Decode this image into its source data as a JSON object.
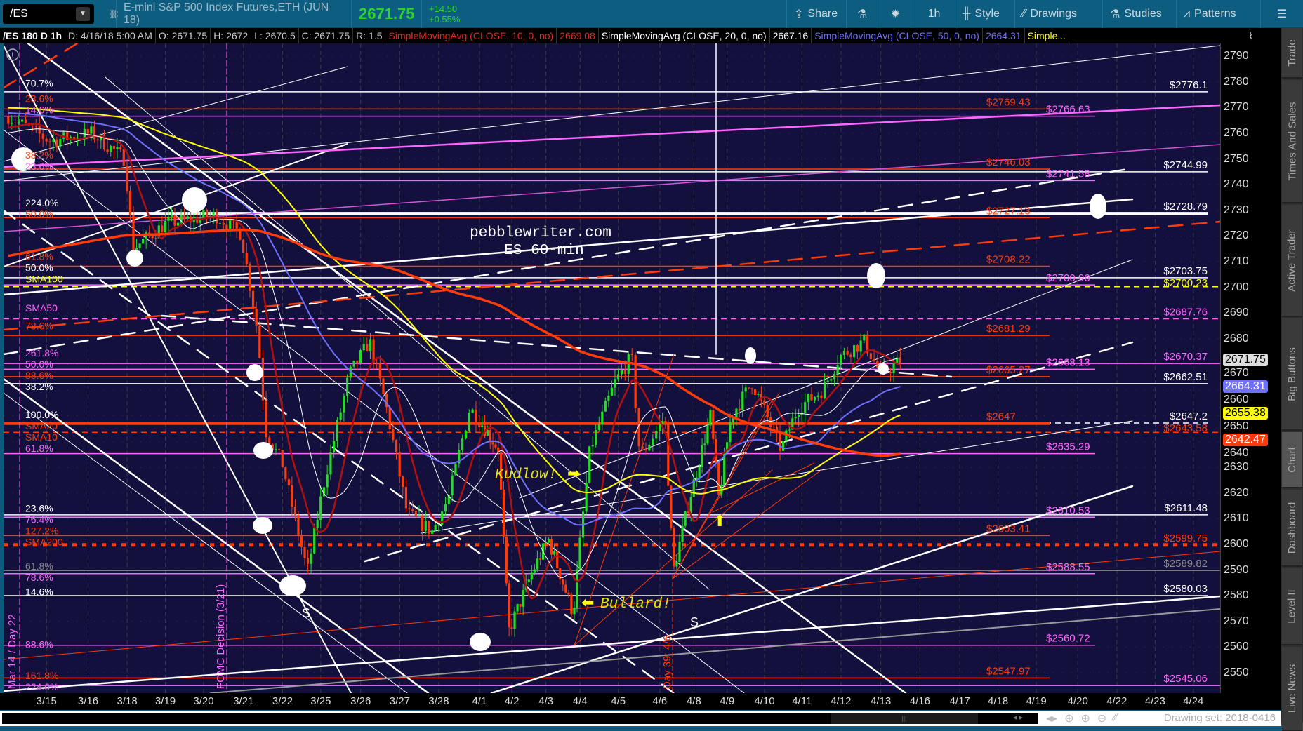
{
  "toolbar": {
    "symbol": "/ES",
    "description": "E-mini S&P 500 Index Futures,ETH (JUN 18)",
    "last": "2671.75",
    "change": "+14.50",
    "change_pct": "+0.55%",
    "buttons": [
      {
        "icon": "share-icon",
        "label": "Share"
      },
      {
        "icon": "flask-icon",
        "label": ""
      },
      {
        "icon": "gear-icon",
        "label": ""
      },
      {
        "icon": "",
        "label": "1h"
      },
      {
        "icon": "candle-icon",
        "label": "Style"
      },
      {
        "icon": "drawings-icon",
        "label": "Drawings"
      },
      {
        "icon": "flask-icon",
        "label": "Studies"
      },
      {
        "icon": "patterns-icon",
        "label": "Patterns"
      },
      {
        "icon": "menu-icon",
        "label": ""
      }
    ]
  },
  "infobar": {
    "title": "/ES 180 D 1h",
    "date": "D: 4/16/18 5:00 AM",
    "open": "O: 2671.75",
    "high": "H: 2672",
    "low": "L: 2670.5",
    "close": "C: 2671.75",
    "range": "R: 1.5",
    "sma10": "SimpleMovingAvg (CLOSE, 10, 0, no)",
    "sma10_val": "2669.08",
    "sma20": "SimpleMovingAvg (CLOSE, 20, 0, no)",
    "sma20_val": "2667.16",
    "sma50": "SimpleMovingAvg (CLOSE, 50, 0, no)",
    "sma50_val": "2664.31",
    "more": "Simple..."
  },
  "colors": {
    "chart_bg": "#13103d",
    "red": "#ff3b0a",
    "pink": "#ff66ff",
    "white": "#ffffff",
    "yellow": "#ffff00",
    "blue": "#7070ff",
    "grey": "#888888",
    "up": "#22dd22"
  },
  "price_axis": {
    "ticks": [
      2790,
      2780,
      2770,
      2760,
      2750,
      2740,
      2730,
      2720,
      2710,
      2700,
      2690,
      2680,
      2670,
      2660,
      2650,
      2640,
      2630,
      2620,
      2610,
      2600,
      2590,
      2580,
      2570,
      2560,
      2550
    ],
    "badges": [
      {
        "value": "2671.75",
        "price": 2671.75,
        "bg": "#dddddd",
        "fg": "#000"
      },
      {
        "value": "2664.31",
        "price": 2664.31,
        "bg": "#7070ff",
        "fg": "#fff"
      },
      {
        "value": "2655.38",
        "price": 2655.38,
        "bg": "#ffff00",
        "fg": "#000"
      },
      {
        "value": "2642.47",
        "price": 2642.47,
        "bg": "#ff3b0a",
        "fg": "#fff"
      }
    ]
  },
  "dates": [
    "3/15",
    "3/16",
    "3/18",
    "3/19",
    "3/20",
    "3/21",
    "3/22",
    "3/25",
    "3/26",
    "3/27",
    "3/28",
    "4/1",
    "4/2",
    "4/3",
    "4/4",
    "4/5",
    "4/6",
    "4/8",
    "4/9",
    "4/10",
    "4/11",
    "4/12",
    "4/13",
    "4/16",
    "4/17",
    "4/18",
    "4/19",
    "4/20",
    "4/22",
    "4/23",
    "4/24"
  ],
  "levels": [
    {
      "price": 2776.1,
      "kind": "white",
      "label": "$2776.1"
    },
    {
      "price": 2769.43,
      "kind": "red",
      "label": "$2769.43"
    },
    {
      "price": 2766.63,
      "kind": "pink",
      "label": "$2766.63"
    },
    {
      "price": 2746.03,
      "kind": "red",
      "label": "$2746.03"
    },
    {
      "price": 2744.99,
      "kind": "white",
      "label": "$2744.99"
    },
    {
      "price": 2741.58,
      "kind": "pink",
      "label": "$2741.58"
    },
    {
      "price": 2728.79,
      "kind": "white",
      "label": "$2728.79",
      "thick": true
    },
    {
      "price": 2727.13,
      "kind": "red",
      "label": "$2727.13"
    },
    {
      "price": 2708.22,
      "kind": "red",
      "label": "$2708.22"
    },
    {
      "price": 2703.75,
      "kind": "white",
      "label": "$2703.75"
    },
    {
      "price": 2700.96,
      "kind": "pink",
      "label": "$2700.96"
    },
    {
      "price": 2700.23,
      "kind": "yellow",
      "label": "$2700.23",
      "dash": "dashed"
    },
    {
      "price": 2687.76,
      "kind": "pinkr",
      "label": "$2687.76",
      "dash": "dashed"
    },
    {
      "price": 2681.29,
      "kind": "red",
      "label": "$2681.29"
    },
    {
      "price": 2670.37,
      "kind": "pinkr",
      "label": "$2670.37"
    },
    {
      "price": 2668.13,
      "kind": "pink",
      "label": "$2668.13"
    },
    {
      "price": 2665.27,
      "kind": "red",
      "label": "$2665.27"
    },
    {
      "price": 2662.51,
      "kind": "white",
      "label": "$2662.51"
    },
    {
      "price": 2647.2,
      "kind": "white",
      "label": "$2647.2",
      "dash": "dashed"
    },
    {
      "price": 2647,
      "kind": "red",
      "label": "$2647",
      "thick": true
    },
    {
      "price": 2643.58,
      "kind": "redr",
      "label": "$2643.58",
      "dash": "dashed"
    },
    {
      "price": 2635.29,
      "kind": "pink",
      "label": "$2635.29"
    },
    {
      "price": 2611.48,
      "kind": "white",
      "label": "$2611.48"
    },
    {
      "price": 2610.53,
      "kind": "pink",
      "label": "$2610.53"
    },
    {
      "price": 2603.41,
      "kind": "red",
      "label": "$2603.41"
    },
    {
      "price": 2599.75,
      "kind": "redr",
      "label": "$2599.75",
      "dash": "dotted"
    },
    {
      "price": 2589.82,
      "kind": "grey",
      "label": "$2589.82"
    },
    {
      "price": 2588.55,
      "kind": "pink",
      "label": "$2588.55"
    },
    {
      "price": 2580.03,
      "kind": "white",
      "label": "$2580.03"
    },
    {
      "price": 2560.72,
      "kind": "pink",
      "label": "$2560.72"
    },
    {
      "price": 2547.97,
      "kind": "red",
      "label": "$2547.97"
    },
    {
      "price": 2545.06,
      "kind": "pinkr",
      "label": "$2545.06"
    }
  ],
  "fib_labels": [
    {
      "text": "70.7%",
      "price": 2779.5,
      "kind": "white"
    },
    {
      "text": "23.6%",
      "price": 2773.5,
      "kind": "red"
    },
    {
      "text": "14.6%",
      "price": 2770.5,
      "kind": "pink"
    },
    {
      "text": "38.2%",
      "price": 2751.5,
      "kind": "red"
    },
    {
      "text": "23.6%",
      "price": 2748,
      "kind": "pink"
    },
    {
      "text": "224.0%",
      "price": 2733,
      "kind": "white"
    },
    {
      "text": "50.0%",
      "price": 2730.5,
      "kind": "red"
    },
    {
      "text": "61.8%",
      "price": 2712,
      "kind": "red"
    },
    {
      "text": "50.0%",
      "price": 2708,
      "kind": "white"
    },
    {
      "text": "SMA100",
      "price": 2704.5,
      "kind": "yellow"
    },
    {
      "text": "SMA50",
      "price": 2692,
      "kind": "pink"
    },
    {
      "text": "78.6%",
      "price": 2685,
      "kind": "red"
    },
    {
      "text": "261.8%",
      "price": 2674.5,
      "kind": "pink"
    },
    {
      "text": "50.0%",
      "price": 2672.5,
      "kind": "pink"
    },
    {
      "text": "88.6%",
      "price": 2670,
      "kind": "red"
    },
    {
      "text": "38.2%",
      "price": 2666.5,
      "kind": "white"
    },
    {
      "text": "100.0%",
      "price": 2650.5,
      "kind": "white"
    },
    {
      "text": "SMA20",
      "price": 2650.5,
      "kind": "red"
    },
    {
      "text": "SMA10",
      "price": 2647,
      "kind": "red"
    },
    {
      "text": "61.8%",
      "price": 2638.5,
      "kind": "pink"
    },
    {
      "text": "23.6%",
      "price": 2614,
      "kind": "white"
    },
    {
      "text": "76.4%",
      "price": 2613,
      "kind": "pink"
    },
    {
      "text": "127.2%",
      "price": 2605.5,
      "kind": "red"
    },
    {
      "text": "SMA200",
      "price": 2602,
      "kind": "red"
    },
    {
      "text": "61.8%",
      "price": 2591.5,
      "kind": "grey"
    },
    {
      "text": "78.6%",
      "price": 2590,
      "kind": "pink"
    },
    {
      "text": "14.6%",
      "price": 2581.5,
      "kind": "white"
    },
    {
      "text": "88.6%",
      "price": 2561,
      "kind": "pink"
    },
    {
      "text": "161.8%",
      "price": 2548,
      "kind": "red"
    },
    {
      "text": "224.0%",
      "price": 2545,
      "kind": "pink"
    }
  ],
  "annotations": {
    "watermark_line1": "pebblewriter.com",
    "watermark_line2": "ES 60-min",
    "kudlow": "Kudlow!",
    "bullard": "Bullard!",
    "s1": "S",
    "s2": "S",
    "fomc": "FOMC Decision (3/21)",
    "mar14": "Mar 14 / Day 22",
    "day39": "Day 39: 4/6"
  },
  "price_path": [
    [
      -0.92,
      2766.6
    ],
    [
      0.08,
      2757
    ],
    [
      1.09,
      2760
    ],
    [
      1.94,
      2750
    ],
    [
      2.15,
      2715
    ],
    [
      3.02,
      2725
    ],
    [
      4.31,
      2728
    ],
    [
      4.94,
      2721
    ],
    [
      5.36,
      2683
    ],
    [
      5.57,
      2644
    ],
    [
      6.0,
      2631
    ],
    [
      6.65,
      2589
    ],
    [
      7.08,
      2624
    ],
    [
      7.71,
      2666
    ],
    [
      8.23,
      2679
    ],
    [
      8.66,
      2653
    ],
    [
      9.19,
      2612
    ],
    [
      9.83,
      2605
    ],
    [
      10.24,
      2618
    ],
    [
      10.76,
      2653
    ],
    [
      11.59,
      2637
    ],
    [
      11.9,
      2566
    ],
    [
      12.59,
      2589
    ],
    [
      13.07,
      2602
    ],
    [
      13.8,
      2573
    ],
    [
      14.26,
      2637
    ],
    [
      14.91,
      2663
    ],
    [
      15.32,
      2673
    ],
    [
      15.52,
      2634
    ],
    [
      16.15,
      2650
    ],
    [
      16.39,
      2589
    ],
    [
      16.88,
      2618
    ],
    [
      17.5,
      2650
    ],
    [
      17.75,
      2618
    ],
    [
      18.11,
      2650
    ],
    [
      18.67,
      2663
    ],
    [
      19.44,
      2637
    ],
    [
      19.89,
      2653
    ],
    [
      20.53,
      2660
    ],
    [
      20.96,
      2673
    ],
    [
      21.58,
      2679
    ],
    [
      22.0,
      2666
    ],
    [
      22.52,
      2671.75
    ]
  ],
  "sidebar_tabs": [
    "Trade",
    "Times And Sales",
    "Active Trader",
    "Big Buttons",
    "Chart",
    "Dashboard",
    "Level II",
    "Live News"
  ],
  "bottom": {
    "drawing_set": "Drawing set: 2018-0416"
  }
}
